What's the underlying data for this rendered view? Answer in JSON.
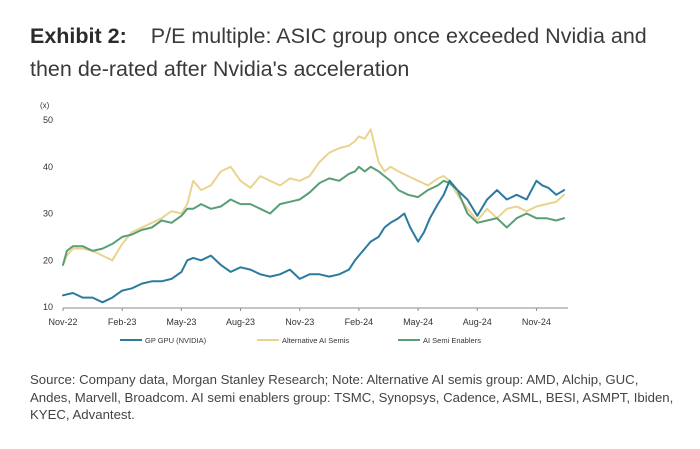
{
  "header": {
    "exhibit": "Exhibit 2:",
    "title": "P/E multiple: ASIC group once exceeded Nvidia and then de-rated after Nvidia's acceleration"
  },
  "source_note": "Source: Company data, Morgan Stanley Research; Note: Alternative AI semis group: AMD, Alchip, GUC, Andes, Marvell, Broadcom. AI semi enablers group: TSMC, Synopsys, Cadence, ASML, BESI, ASMPT, Ibiden, KYEC, Advantest.",
  "chart_data": {
    "type": "line",
    "unit_label": "(x)",
    "ylim": [
      10,
      50
    ],
    "yticks": [
      "10",
      "20",
      "30",
      "40",
      "50"
    ],
    "xlim": [
      0,
      25.6
    ],
    "xticks": [
      {
        "label": "Nov-22",
        "x": 0
      },
      {
        "label": "Feb-23",
        "x": 3
      },
      {
        "label": "May-23",
        "x": 6
      },
      {
        "label": "Aug-23",
        "x": 9
      },
      {
        "label": "Nov-23",
        "x": 12
      },
      {
        "label": "Feb-24",
        "x": 15
      },
      {
        "label": "May-24",
        "x": 18
      },
      {
        "label": "Aug-24",
        "x": 21
      },
      {
        "label": "Nov-24",
        "x": 24
      }
    ],
    "series": [
      {
        "name": "Alternative AI Semis",
        "color": "#e9d48f",
        "x": [
          0,
          0.2,
          0.5,
          1,
          1.5,
          2,
          2.5,
          3,
          3.5,
          4,
          4.5,
          5,
          5.5,
          6,
          6.3,
          6.6,
          7,
          7.5,
          8,
          8.5,
          9,
          9.5,
          10,
          10.5,
          11,
          11.5,
          12,
          12.5,
          13,
          13.5,
          14,
          14.5,
          14.8,
          15,
          15.3,
          15.6,
          16,
          16.3,
          16.6,
          17,
          17.5,
          18,
          18.5,
          19,
          19.3,
          19.6,
          20,
          20.5,
          21,
          21.5,
          22,
          22.5,
          23,
          23.5,
          24,
          24.5,
          25,
          25.4
        ],
        "y": [
          19,
          21,
          22.5,
          22.5,
          22,
          21,
          20,
          23.5,
          26,
          27,
          28,
          29,
          30.5,
          30,
          32,
          37,
          35,
          36,
          39,
          40,
          37,
          35.5,
          38,
          37,
          36,
          37.5,
          37,
          38,
          41,
          43,
          44,
          44.5,
          45.5,
          46.5,
          46,
          48,
          41,
          39,
          40,
          39,
          38,
          37,
          36,
          37.5,
          38,
          37,
          34,
          31,
          28.5,
          31,
          29,
          31,
          31.5,
          30.5,
          31.5,
          32,
          32.5,
          34
        ]
      },
      {
        "name": "AI Semi Enablers",
        "color": "#5a9e77",
        "x": [
          0,
          0.2,
          0.5,
          1,
          1.5,
          2,
          2.5,
          3,
          3.5,
          4,
          4.5,
          5,
          5.5,
          6,
          6.3,
          6.6,
          7,
          7.5,
          8,
          8.5,
          9,
          9.5,
          10,
          10.5,
          11,
          11.5,
          12,
          12.5,
          13,
          13.5,
          14,
          14.5,
          14.8,
          15,
          15.3,
          15.6,
          16,
          16.3,
          16.6,
          17,
          17.5,
          18,
          18.5,
          19,
          19.3,
          19.6,
          20,
          20.5,
          21,
          21.5,
          22,
          22.5,
          23,
          23.5,
          24,
          24.5,
          25,
          25.4
        ],
        "y": [
          19,
          22,
          23,
          23,
          22,
          22.5,
          23.5,
          25,
          25.5,
          26.5,
          27,
          28.5,
          28,
          29.5,
          31,
          31,
          32,
          31,
          31.5,
          33,
          32,
          32,
          31,
          30,
          32,
          32.5,
          33,
          34.5,
          36.5,
          37.5,
          37,
          38.5,
          39,
          40,
          39,
          40,
          39,
          38,
          37,
          35,
          34,
          33.5,
          35,
          36,
          37,
          36.5,
          35,
          30,
          28,
          28.5,
          29,
          27,
          29,
          30,
          29,
          29,
          28.5,
          29
        ]
      },
      {
        "name": "GP GPU (NVIDIA)",
        "color": "#2b7aa0",
        "x": [
          0,
          0.5,
          1,
          1.5,
          2,
          2.5,
          3,
          3.5,
          4,
          4.5,
          5,
          5.5,
          6,
          6.3,
          6.6,
          7,
          7.5,
          8,
          8.5,
          9,
          9.5,
          10,
          10.5,
          11,
          11.5,
          12,
          12.5,
          13,
          13.5,
          14,
          14.5,
          14.8,
          15,
          15.3,
          15.6,
          16,
          16.3,
          16.6,
          17,
          17.3,
          17.6,
          18,
          18.3,
          18.6,
          19,
          19.3,
          19.6,
          20,
          20.5,
          21,
          21.5,
          22,
          22.5,
          23,
          23.5,
          24,
          24.3,
          24.6,
          25,
          25.4
        ],
        "y": [
          12.5,
          13,
          12,
          12,
          11,
          12,
          13.5,
          14,
          15,
          15.5,
          15.5,
          16,
          17.5,
          20,
          20.5,
          20,
          21,
          19,
          17.5,
          18.5,
          18,
          17,
          16.5,
          17,
          18,
          16,
          17,
          17,
          16.5,
          17,
          18,
          20,
          21,
          22.5,
          24,
          25,
          27,
          28,
          29,
          30,
          27,
          24,
          26,
          29,
          32,
          34,
          37,
          35,
          33,
          29.5,
          33,
          35,
          33,
          34,
          33,
          37,
          36,
          35.5,
          34,
          35
        ]
      }
    ],
    "legend": [
      "GP GPU (NVIDIA)",
      "Alternative AI Semis",
      "AI Semi Enablers"
    ]
  }
}
